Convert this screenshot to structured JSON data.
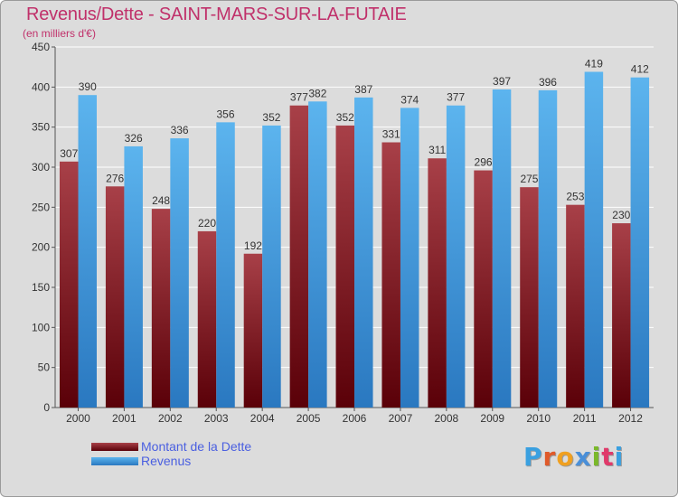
{
  "title": "Revenus/Dette - SAINT-MARS-SUR-LA-FUTAIE",
  "subtitle": "(en milliers d'€)",
  "logo": {
    "text": "Proxiti",
    "colors": [
      "#3aa0e0",
      "#e05a2a",
      "#f0a020",
      "#4a8fd8",
      "#7ab82a",
      "#e03a6a",
      "#3aa0e0"
    ]
  },
  "colors": {
    "dette_dark": "#5a0008",
    "dette_light": "#a84048",
    "revenus_dark": "#2a78c0",
    "revenus_light": "#5cb4ee",
    "axis_text": "#333333",
    "grid": "#ffffff"
  },
  "chart_data": {
    "type": "bar",
    "categories": [
      "2000",
      "2001",
      "2002",
      "2003",
      "2004",
      "2005",
      "2006",
      "2007",
      "2008",
      "2009",
      "2010",
      "2011",
      "2012"
    ],
    "series": [
      {
        "name": "Montant de la Dette",
        "values": [
          307,
          276,
          248,
          220,
          192,
          377,
          352,
          331,
          311,
          296,
          275,
          253,
          230
        ]
      },
      {
        "name": "Revenus",
        "values": [
          390,
          326,
          336,
          356,
          352,
          382,
          387,
          374,
          377,
          397,
          396,
          419,
          412
        ]
      }
    ],
    "ylim": [
      0,
      450
    ],
    "yticks": [
      "0",
      "50",
      "100",
      "150",
      "200",
      "250",
      "300",
      "350",
      "400",
      "450"
    ],
    "grid": true,
    "legend": "bottom-left"
  }
}
